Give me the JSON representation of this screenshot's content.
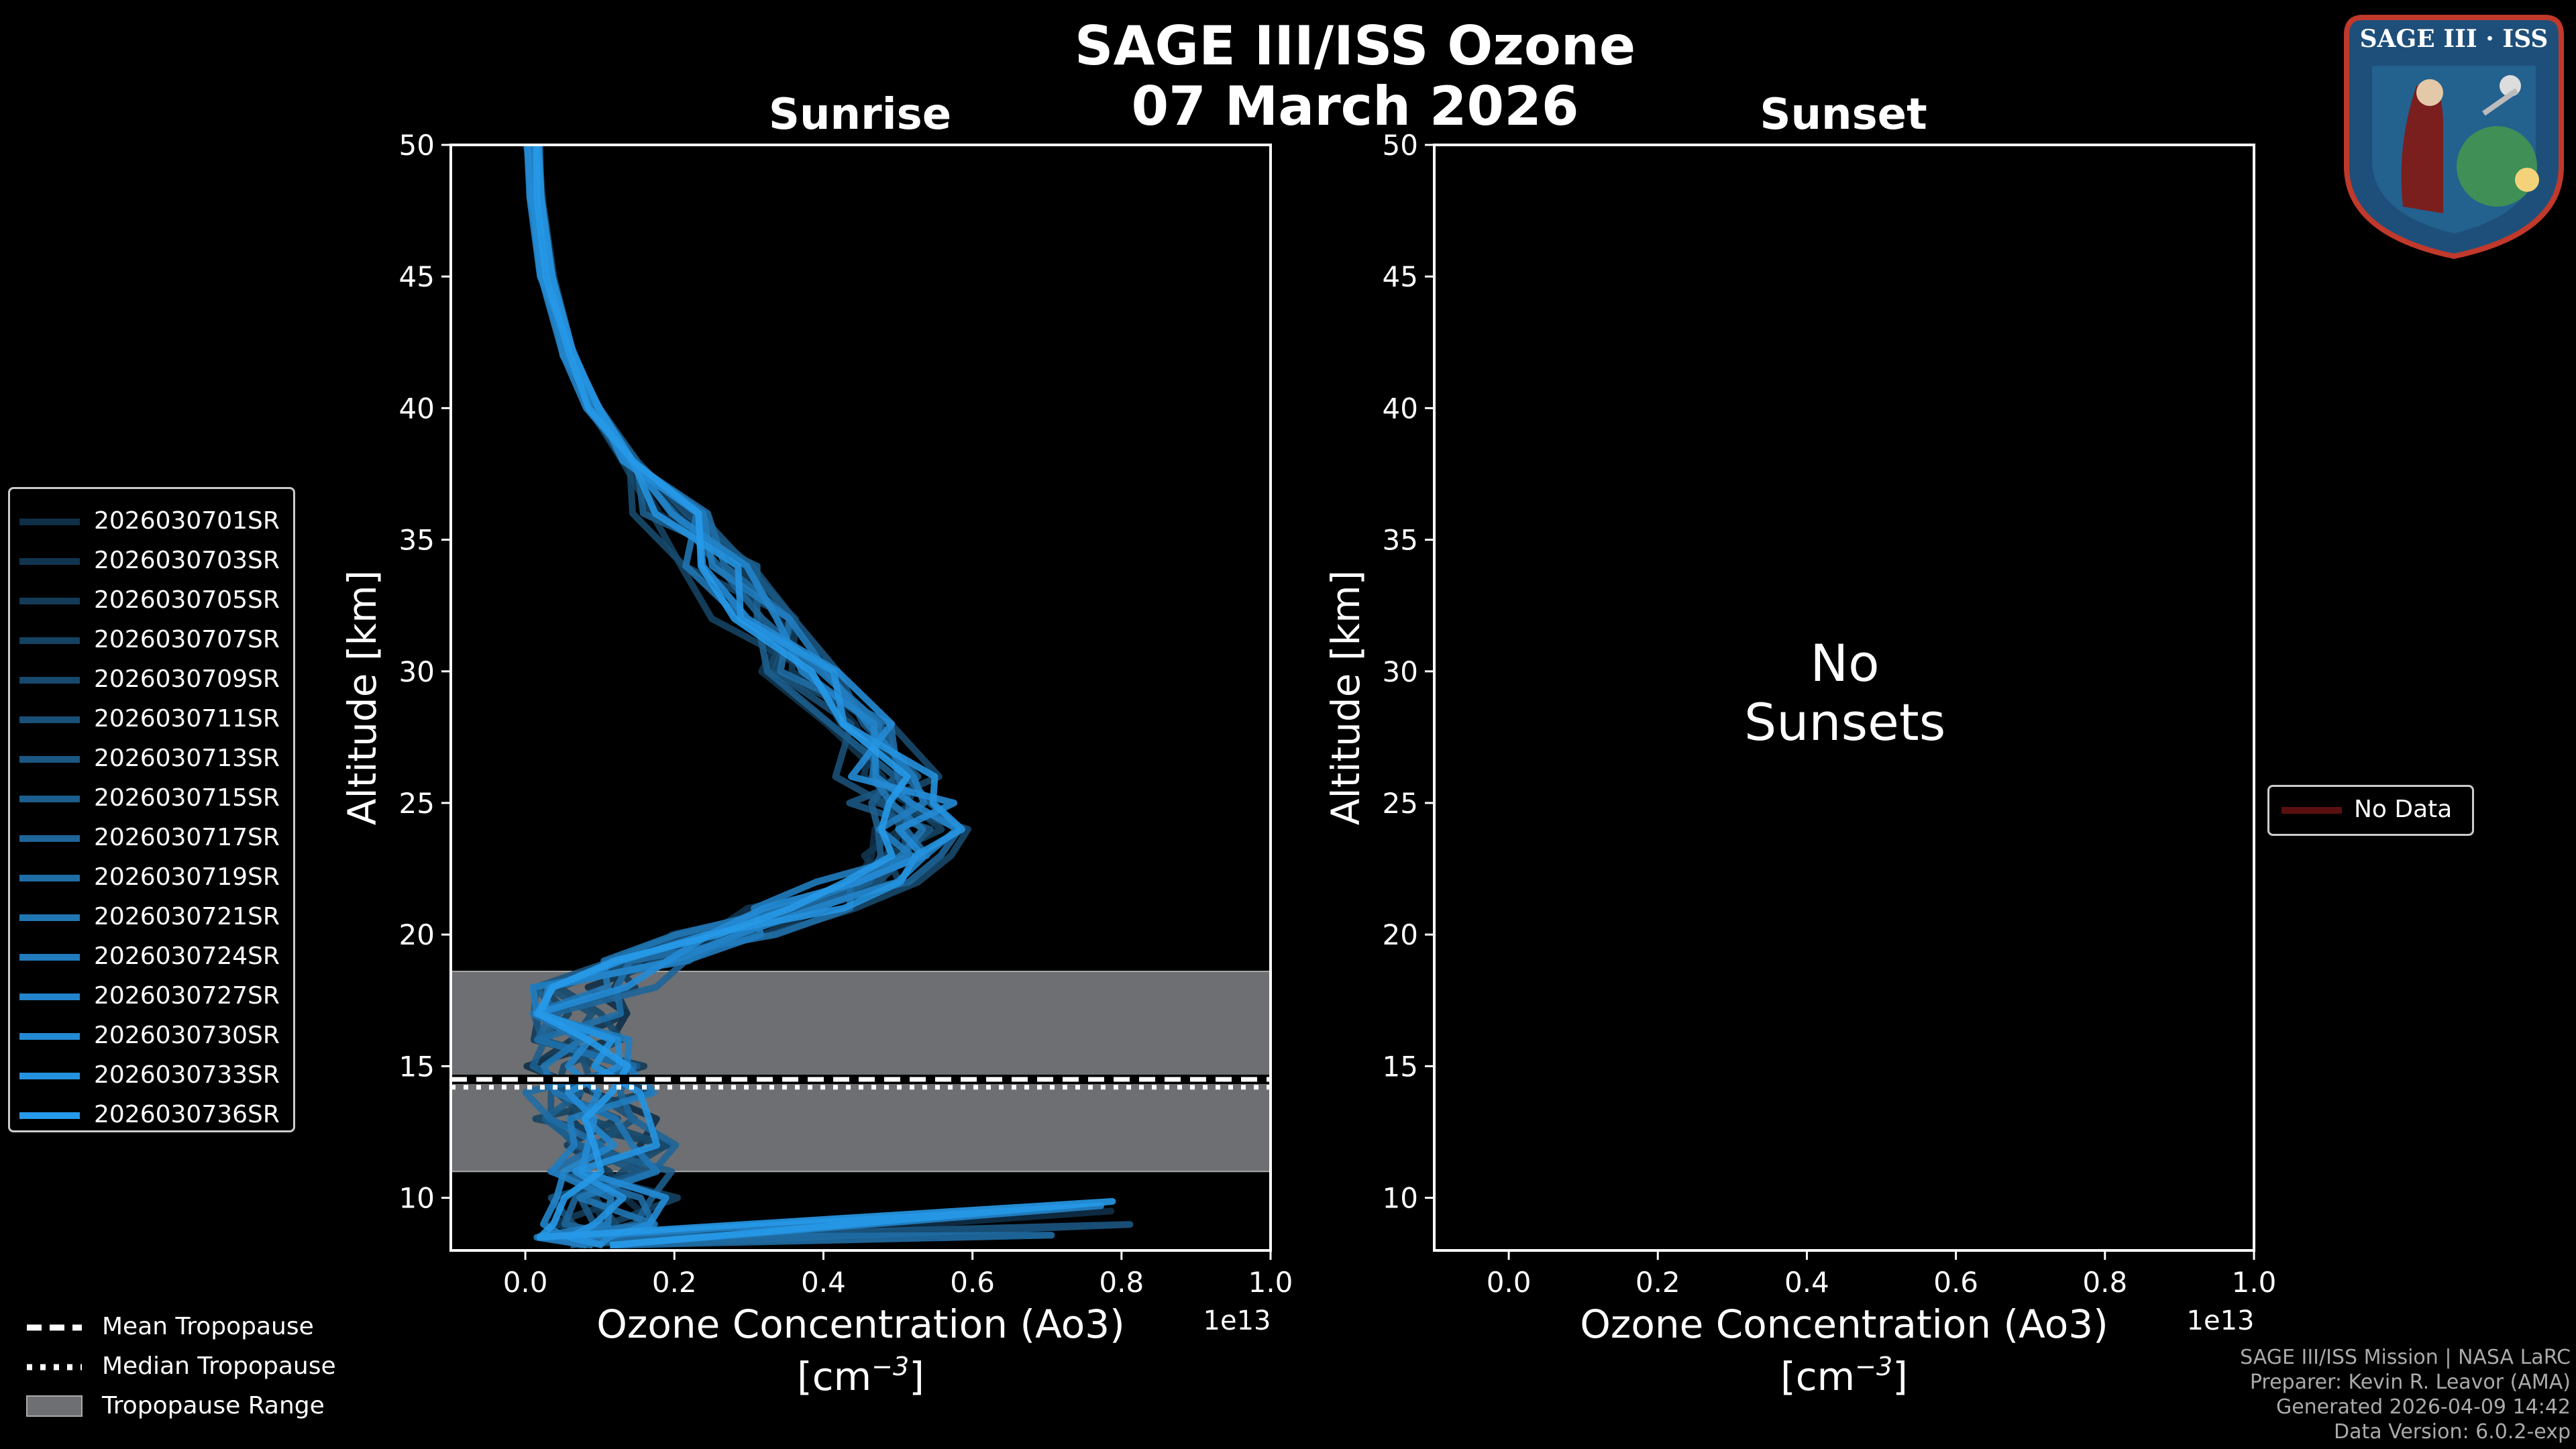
{
  "title_line1": "SAGE III/ISS Ozone",
  "title_line2": "07 March 2026",
  "panels": {
    "left_title": "Sunrise",
    "right_title": "Sunset",
    "no_data_text_1": "No",
    "no_data_text_2": "Sunsets"
  },
  "legend_events": [
    "2026030701SR",
    "2026030703SR",
    "2026030705SR",
    "2026030707SR",
    "2026030709SR",
    "2026030711SR",
    "2026030713SR",
    "2026030715SR",
    "2026030717SR",
    "2026030719SR",
    "2026030721SR",
    "2026030724SR",
    "2026030727SR",
    "2026030730SR",
    "2026030733SR",
    "2026030736SR"
  ],
  "legend_colors": [
    "#0f2f47",
    "#11354f",
    "#133b58",
    "#154262",
    "#17496c",
    "#195077",
    "#1b5782",
    "#1c5e8d",
    "#1e6599",
    "#1f6da5",
    "#2075b2",
    "#217cbe",
    "#2284ca",
    "#238bd5",
    "#2592df",
    "#2699e8"
  ],
  "right_legend": {
    "label": "No Data",
    "color": "#5a1010"
  },
  "bottom_legend": {
    "mean": "Mean Tropopause",
    "median": "Median Tropopause",
    "range": "Tropopause Range"
  },
  "credits": [
    "SAGE III/ISS Mission | NASA LaRC",
    "Preparer: Kevin R. Leavor (AMA)",
    "Generated 2026-04-09 14:42",
    "Data Version: 6.0.2-exp"
  ],
  "logo": {
    "text": "SAGE III · ISS"
  },
  "chart_data": [
    {
      "type": "line",
      "title": "Sunrise",
      "xlabel": "Ozone Concentration (Ao3)",
      "xlabel_units": "[cm$^{-3}$]",
      "ylabel": "Altitude [km]",
      "x_offset_label": "1e13",
      "xlim": [
        -0.1,
        1.0
      ],
      "ylim": [
        8,
        50
      ],
      "xticks": [
        "0.0",
        "0.2",
        "0.4",
        "0.6",
        "0.8",
        "1.0"
      ],
      "yticks": [
        "10",
        "15",
        "20",
        "25",
        "30",
        "35",
        "40",
        "45",
        "50"
      ],
      "tropopause": {
        "mean_km": 14.5,
        "median_km": 14.2,
        "range_km": [
          11.0,
          18.6
        ]
      },
      "base_profile": {
        "altitude_km": [
          50,
          48,
          45,
          42,
          40,
          38,
          36,
          34,
          32,
          30,
          28,
          26,
          25,
          24,
          23,
          22,
          21,
          20,
          19,
          18,
          17,
          16,
          15,
          14,
          13,
          12,
          11,
          10,
          9,
          8.5
        ],
        "value_1e13": [
          0.01,
          0.015,
          0.03,
          0.06,
          0.09,
          0.14,
          0.2,
          0.26,
          0.31,
          0.37,
          0.42,
          0.46,
          0.48,
          0.5,
          0.48,
          0.42,
          0.34,
          0.25,
          0.16,
          0.09,
          0.06,
          0.06,
          0.07,
          0.09,
          0.1,
          0.12,
          0.12,
          0.12,
          0.1,
          0.08
        ]
      }
    },
    {
      "type": "line",
      "title": "Sunset",
      "xlabel": "Ozone Concentration (Ao3)",
      "xlabel_units": "[cm$^{-3}$]",
      "ylabel": "Altitude [km]",
      "x_offset_label": "1e13",
      "xlim": [
        -0.1,
        1.0
      ],
      "ylim": [
        8,
        50
      ],
      "xticks": [
        "0.0",
        "0.2",
        "0.4",
        "0.6",
        "0.8",
        "1.0"
      ],
      "yticks": [
        "10",
        "15",
        "20",
        "25",
        "30",
        "35",
        "40",
        "45",
        "50"
      ],
      "series": []
    }
  ]
}
